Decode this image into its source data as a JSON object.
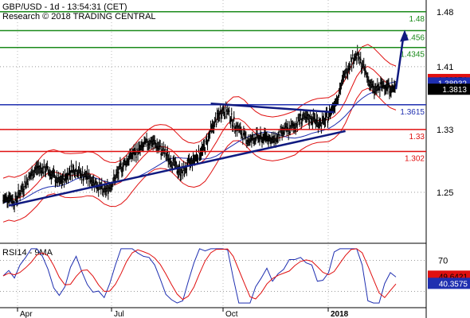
{
  "header": {
    "line1": "GBP/USD - 1d - 13:54:31 (CET)",
    "line2": "Research © 2018 TRADING CENTRAL"
  },
  "colors": {
    "green": "#1a8a1a",
    "blue": "#1f2fb0",
    "red": "#e01010",
    "navy": "#101a80",
    "price_bg": "#000000"
  },
  "chart_data": [
    {
      "type": "line",
      "title": "",
      "ylim": [
        1.185,
        1.495
      ],
      "x_ticks": [
        "Apr",
        "Jul",
        "Oct",
        "2018"
      ],
      "y_ticks": [
        1.25,
        1.33,
        1.41,
        1.48
      ],
      "levels": [
        {
          "label": "1.48",
          "value": 1.48,
          "color": "#1a8a1a"
        },
        {
          "label": "1.456",
          "value": 1.456,
          "color": "#1a8a1a"
        },
        {
          "label": "1.4345",
          "value": 1.4345,
          "color": "#1a8a1a"
        },
        {
          "label": "1.3615",
          "value": 1.3615,
          "color": "#1f2fb0"
        },
        {
          "label": "1.33",
          "value": 1.33,
          "color": "#e01010"
        },
        {
          "label": "1.302",
          "value": 1.302,
          "color": "#e01010"
        }
      ],
      "price_labels": [
        {
          "label": "1.39374",
          "value": 1.39374,
          "style": "red"
        },
        {
          "label": "1.38932",
          "value": 1.38932,
          "style": "blue"
        },
        {
          "label": "1.3813",
          "value": 1.3813,
          "style": "black"
        }
      ],
      "close_path": [
        1.24,
        1.245,
        1.238,
        1.25,
        1.262,
        1.272,
        1.281,
        1.28,
        1.278,
        1.27,
        1.262,
        1.268,
        1.278,
        1.28,
        1.272,
        1.27,
        1.265,
        1.258,
        1.25,
        1.258,
        1.268,
        1.281,
        1.29,
        1.298,
        1.302,
        1.308,
        1.315,
        1.312,
        1.305,
        1.298,
        1.29,
        1.28,
        1.275,
        1.285,
        1.292,
        1.3,
        1.308,
        1.328,
        1.342,
        1.355,
        1.352,
        1.34,
        1.33,
        1.32,
        1.315,
        1.32,
        1.318,
        1.322,
        1.315,
        1.32,
        1.328,
        1.33,
        1.335,
        1.345,
        1.342,
        1.345,
        1.34,
        1.338,
        1.348,
        1.362,
        1.38,
        1.402,
        1.418,
        1.425,
        1.412,
        1.395,
        1.38,
        1.382,
        1.388,
        1.383,
        1.381
      ]
    },
    {
      "type": "line",
      "title": "RSI14 - 9MA",
      "ylim": [
        10,
        90
      ],
      "y_ticks": [
        70,
        30
      ],
      "price_labels": [
        {
          "label": "49.6421",
          "value": 49.6421,
          "style": "red"
        },
        {
          "label": "40.3575",
          "value": 40.3575,
          "style": "blue"
        }
      ]
    }
  ],
  "annotations": {
    "target_arrow": {
      "from": 1.3813,
      "to": 1.456
    }
  }
}
